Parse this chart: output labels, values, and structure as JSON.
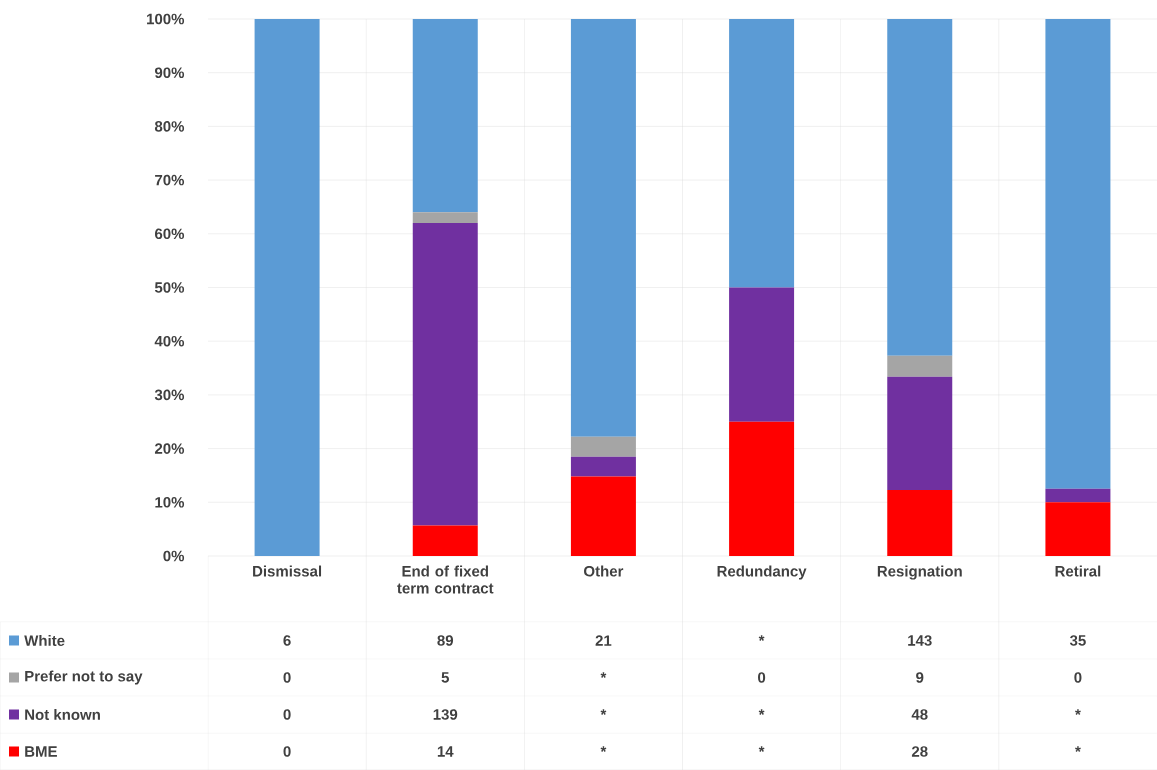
{
  "chart_data": {
    "type": "bar",
    "stacked": true,
    "grid": "y",
    "legend": "bottom",
    "categories": [
      "Dismissal",
      "End of fixed term contract",
      "Other",
      "Redundancy",
      "Resignation",
      "Retiral"
    ],
    "ylim": [
      0,
      100
    ],
    "yticks": [
      {
        "value": 0,
        "label": "0%"
      },
      {
        "value": 10,
        "label": "10%"
      },
      {
        "value": 20,
        "label": "20%"
      },
      {
        "value": 30,
        "label": "30%"
      },
      {
        "value": 40,
        "label": "40%"
      },
      {
        "value": 50,
        "label": "50%"
      },
      {
        "value": 60,
        "label": "60%"
      },
      {
        "value": 70,
        "label": "70%"
      },
      {
        "value": 80,
        "label": "80%"
      },
      {
        "value": 90,
        "label": "90%"
      },
      {
        "value": 100,
        "label": "100%"
      }
    ],
    "series": [
      {
        "name": "BME",
        "color": "#ff0000",
        "values": [
          0,
          5.7,
          14.8,
          25,
          12.3,
          10
        ]
      },
      {
        "name": "Not known",
        "color": "#7030a0",
        "values": [
          0,
          56.3,
          3.7,
          25,
          21.1,
          2.5
        ]
      },
      {
        "name": "Prefer not to say",
        "color": "#a5a5a5",
        "values": [
          0,
          2.0,
          3.7,
          0,
          3.9,
          0
        ]
      },
      {
        "name": "White",
        "color": "#5b9bd5",
        "values": [
          100,
          36.0,
          77.8,
          50,
          62.7,
          87.5
        ]
      }
    ],
    "annotations": [
      "6",
      "89",
      "21",
      "*",
      "143",
      "35",
      "0",
      "5",
      "*",
      "0",
      "9",
      "0",
      "0",
      "139",
      "*",
      "*",
      "48",
      "*",
      "0",
      "14",
      "*",
      "*",
      "28",
      "*"
    ]
  }
}
